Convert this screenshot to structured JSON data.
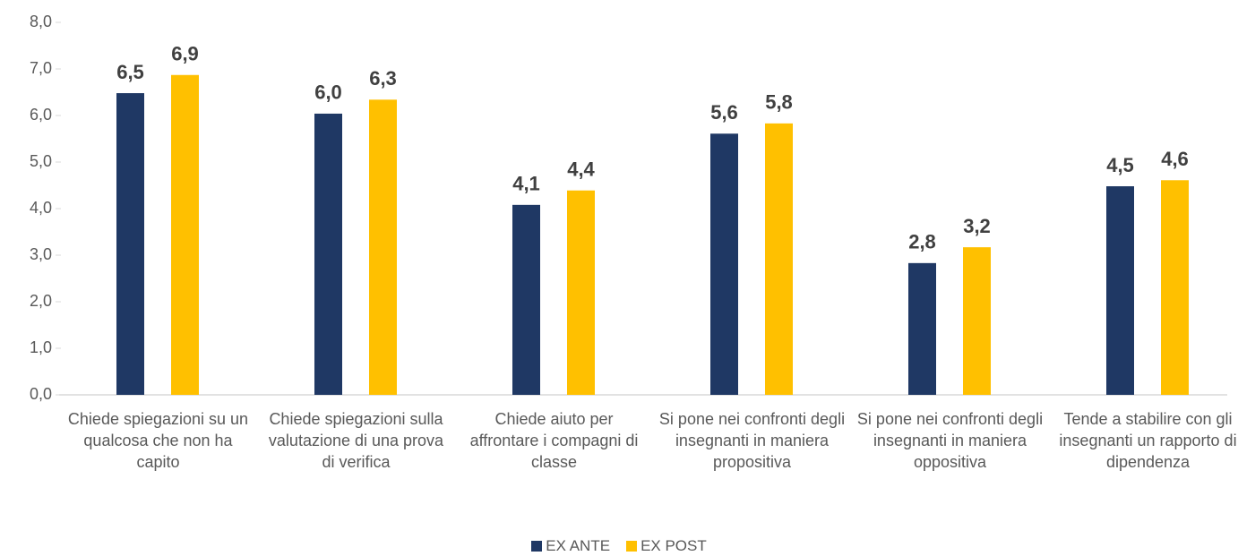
{
  "chart_data": {
    "type": "bar",
    "categories": [
      "Chiede spiegazioni su un qualcosa che non ha capito",
      "Chiede spiegazioni sulla valutazione di una prova di verifica",
      "Chiede aiuto per affrontare i compagni di classe",
      "Si pone nei confronti degli insegnanti in maniera propositiva",
      "Si pone nei confronti degli insegnanti in maniera oppositiva",
      "Tende a stabilire con gli insegnanti un rapporto di dipendenza"
    ],
    "series": [
      {
        "name": "EX ANTE",
        "color": "#1f3864",
        "values": [
          6.48,
          6.04,
          4.08,
          5.61,
          2.83,
          4.48
        ],
        "value_labels": [
          "6,5",
          "6,0",
          "4,1",
          "5,6",
          "2,8",
          "4,5"
        ]
      },
      {
        "name": "EX POST",
        "color": "#ffc000",
        "values": [
          6.87,
          6.34,
          4.39,
          5.83,
          3.17,
          4.61
        ],
        "value_labels": [
          "6,9",
          "6,3",
          "4,4",
          "5,8",
          "3,2",
          "4,6"
        ]
      }
    ],
    "ylim": [
      0,
      8
    ],
    "yticks": [
      {
        "value": 0,
        "label": "0,0"
      },
      {
        "value": 1,
        "label": "1,0"
      },
      {
        "value": 2,
        "label": "2,0"
      },
      {
        "value": 3,
        "label": "3,0"
      },
      {
        "value": 4,
        "label": "4,0"
      },
      {
        "value": 5,
        "label": "5,0"
      },
      {
        "value": 6,
        "label": "6,0"
      },
      {
        "value": 7,
        "label": "7,0"
      },
      {
        "value": 8,
        "label": "8,0"
      }
    ],
    "grid": false,
    "legend": "bottom"
  }
}
